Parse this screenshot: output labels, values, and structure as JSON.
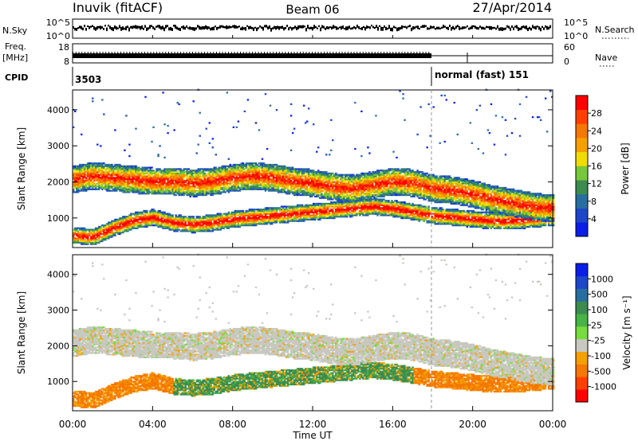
{
  "header": {
    "station": "Inuvik (fitACF)",
    "beam": "Beam 06",
    "date": "27/Apr/2014"
  },
  "top_panels": {
    "nsky": {
      "label": "N.Sky",
      "ticks": [
        "10^5",
        "10^0"
      ],
      "right_label": "N.Search",
      "right_ticks": [
        "10^5",
        "10^0"
      ]
    },
    "freq": {
      "label_line1": "Freq.",
      "label_line2": "[MHz]",
      "ticks": [
        "18",
        "8"
      ],
      "right_label": "Nave",
      "right_ticks": [
        "60",
        "0"
      ]
    },
    "cpid": {
      "label": "CPID",
      "segments": [
        {
          "text": "3503",
          "start_hour": 0
        },
        {
          "text": "normal (fast) 151",
          "start_hour": 18
        }
      ]
    }
  },
  "colors": {
    "power_scale": [
      "#0a1ee6",
      "#1e46c8",
      "#286ea0",
      "#3c8c50",
      "#78c83c",
      "#f0dc00",
      "#f5a000",
      "#f57800",
      "#ff4000",
      "#ff0000"
    ],
    "velocity_scale": [
      "#0a1ee6",
      "#1e46c8",
      "#286ea0",
      "#3c8c50",
      "#46b446",
      "#78dc3c",
      "#c8c8c0",
      "#f5a000",
      "#f57800",
      "#ff4000",
      "#ff0000"
    ],
    "blank": "#ffffff"
  },
  "chart_data": [
    {
      "type": "heatmap",
      "panel": "power",
      "ylabel": "Slant Range [km]",
      "xlabel": "",
      "ylim": [
        180,
        4550
      ],
      "yticks": [
        "1000",
        "2000",
        "3000",
        "4000"
      ],
      "ytick_values": [
        1000,
        2000,
        3000,
        4000
      ],
      "colorbar": {
        "label": "Power [dB]",
        "ticks": [
          "4",
          "8",
          "12",
          "16",
          "20",
          "24",
          "28"
        ],
        "tick_values": [
          4,
          8,
          12,
          16,
          20,
          24,
          28
        ],
        "range": [
          0,
          32
        ]
      },
      "bands": [
        {
          "name": "upper echo band",
          "center_km": [
            2050,
            2150,
            2100,
            2050,
            2000,
            2000,
            1950,
            2000,
            2100,
            2150,
            2100,
            2000,
            1950,
            1850,
            1800,
            1900,
            2000,
            1950,
            1800,
            1750,
            1650,
            1500,
            1400,
            1300,
            1250
          ],
          "value_db": 22
        },
        {
          "name": "lower echo band",
          "center_km": [
            500,
            450,
            700,
            900,
            1000,
            850,
            800,
            850,
            950,
            1000,
            1050,
            1100,
            1150,
            1200,
            1250,
            1300,
            1250,
            1150,
            1050,
            1000,
            950,
            900,
            900,
            950,
            1000
          ],
          "value_db": 20
        }
      ]
    },
    {
      "type": "heatmap",
      "panel": "velocity",
      "ylabel": "Slant Range [km]",
      "xlabel": "Time UT",
      "ylim": [
        180,
        4550
      ],
      "yticks": [
        "1000",
        "2000",
        "3000",
        "4000"
      ],
      "ytick_values": [
        1000,
        2000,
        3000,
        4000
      ],
      "xticks": [
        "00:00",
        "04:00",
        "08:00",
        "12:00",
        "16:00",
        "20:00",
        "00:00"
      ],
      "xtick_hours": [
        0,
        4,
        8,
        12,
        16,
        20,
        24
      ],
      "xlim_hours": [
        0,
        24
      ],
      "colorbar": {
        "label": "Velocity [m s⁻¹]",
        "ticks": [
          "1000",
          "500",
          "100",
          "25",
          "-25",
          "-100",
          "-500",
          "-1000"
        ],
        "tick_values": [
          1000,
          500,
          100,
          25,
          -25,
          -100,
          -500,
          -1000
        ]
      },
      "bands": [
        {
          "name": "upper echo band",
          "value_ms": 0
        },
        {
          "name": "lower echo band",
          "value_ms": -150
        }
      ]
    }
  ]
}
